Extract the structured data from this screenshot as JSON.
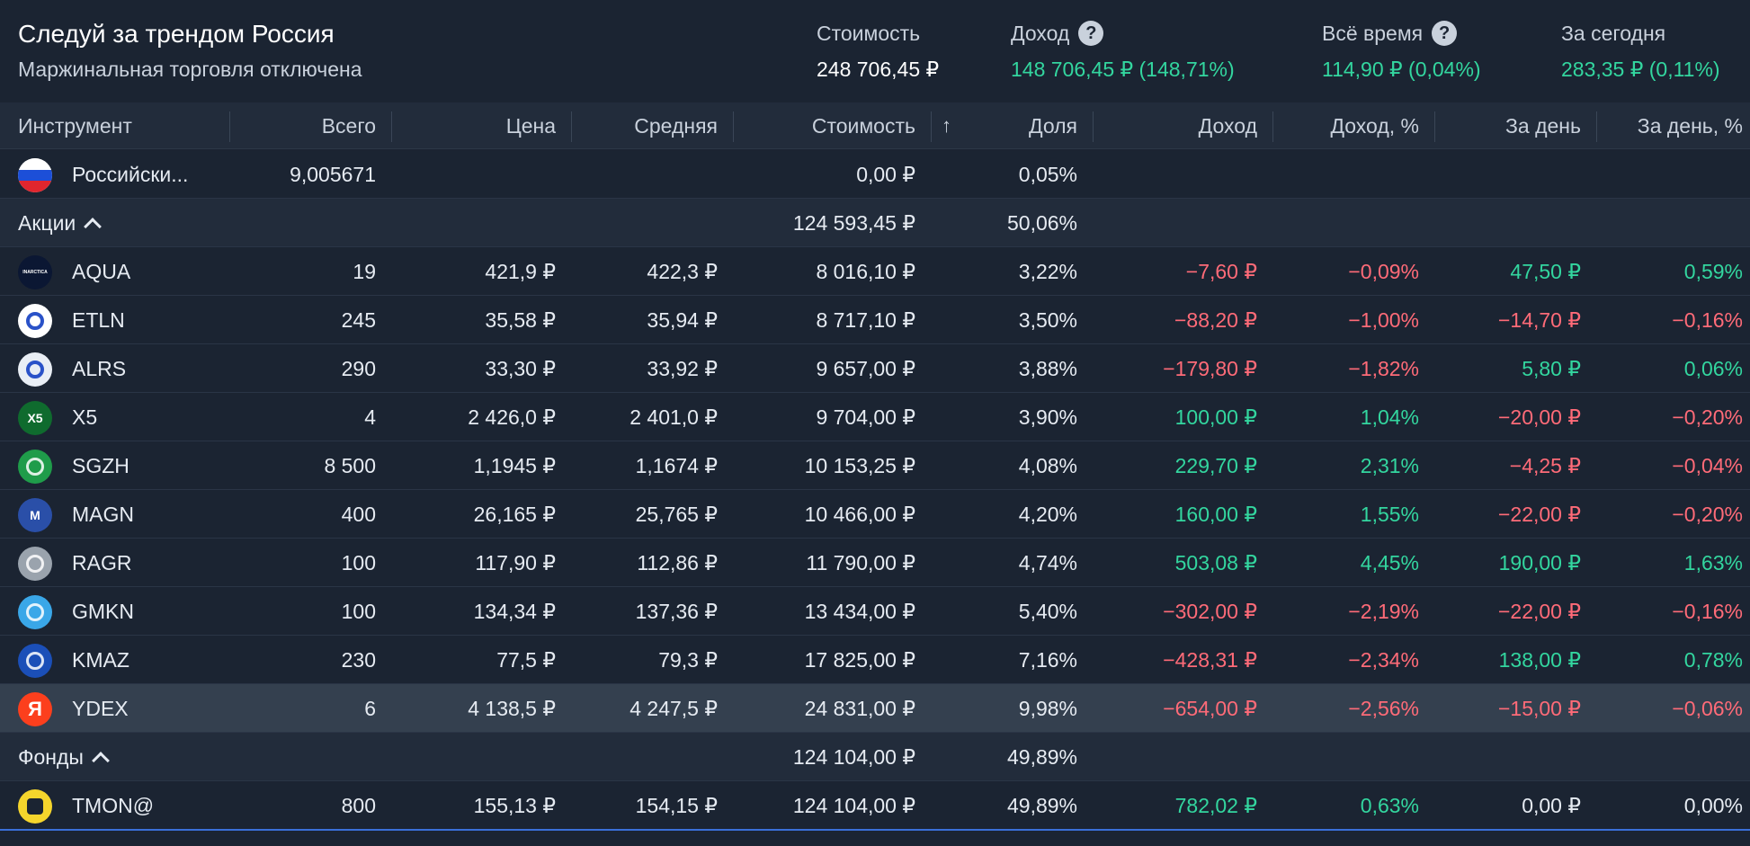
{
  "header": {
    "title": "Следуй за трендом Россия",
    "subtitle": "Маржинальная торговля отключена",
    "stats": [
      {
        "label": "Стоимость",
        "value": "248 706,45 ₽",
        "help": false,
        "tone": "white"
      },
      {
        "label": "Доход",
        "value": "148 706,45 ₽ (148,71%)",
        "help": true,
        "tone": "green"
      },
      {
        "label": "Всё время",
        "value": "114,90 ₽ (0,04%)",
        "help": true,
        "tone": "green"
      },
      {
        "label": "За сегодня",
        "value": "283,35 ₽ (0,11%)",
        "help": false,
        "tone": "green"
      }
    ]
  },
  "table": {
    "headers": {
      "instrument": "Инструмент",
      "total": "Всего",
      "price": "Цена",
      "avg": "Средняя",
      "value": "Стоимость",
      "share": "Доля",
      "income": "Доход",
      "income_pct": "Доход, %",
      "day": "За день",
      "day_pct": "За день, %"
    },
    "currency_row": {
      "name": "Российски...",
      "total": "9,005671",
      "value": "0,00 ₽",
      "share": "0,05%"
    },
    "groups": {
      "stocks": {
        "label": "Акции",
        "value": "124 593,45 ₽",
        "share": "50,06%"
      },
      "funds": {
        "label": "Фонды",
        "value": "124 104,00 ₽",
        "share": "49,89%"
      }
    },
    "stocks": [
      {
        "ticker": "AQUA",
        "total": "19",
        "price": "421,9 ₽",
        "avg": "422,3 ₽",
        "value": "8 016,10 ₽",
        "share": "3,22%",
        "income": "−7,60 ₽",
        "income_pct": "−0,09%",
        "day": "47,50 ₽",
        "day_pct": "0,59%",
        "logo_color": "#0b1733",
        "logo_icon": "inarctica-icon",
        "logo_text": "INARCTICA"
      },
      {
        "ticker": "ETLN",
        "total": "245",
        "price": "35,58 ₽",
        "avg": "35,94 ₽",
        "value": "8 717,10 ₽",
        "share": "3,50%",
        "income": "−88,20 ₽",
        "income_pct": "−1,00%",
        "day": "−14,70 ₽",
        "day_pct": "−0,16%",
        "logo_color": "#ffffff",
        "logo_icon": "etalon-icon",
        "logo_text": ""
      },
      {
        "ticker": "ALRS",
        "total": "290",
        "price": "33,30 ₽",
        "avg": "33,92 ₽",
        "value": "9 657,00 ₽",
        "share": "3,88%",
        "income": "−179,80 ₽",
        "income_pct": "−1,82%",
        "day": "5,80 ₽",
        "day_pct": "0,06%",
        "logo_color": "#e9eef5",
        "logo_icon": "alrosa-icon",
        "logo_text": ""
      },
      {
        "ticker": "X5",
        "total": "4",
        "price": "2 426,0 ₽",
        "avg": "2 401,0 ₽",
        "value": "9 704,00 ₽",
        "share": "3,90%",
        "income": "100,00 ₽",
        "income_pct": "1,04%",
        "day": "−20,00 ₽",
        "day_pct": "−0,20%",
        "logo_color": "#0f6b2e",
        "logo_icon": "x5-icon",
        "logo_text": "X5"
      },
      {
        "ticker": "SGZH",
        "total": "8 500",
        "price": "1,1945 ₽",
        "avg": "1,1674 ₽",
        "value": "10 153,25 ₽",
        "share": "4,08%",
        "income": "229,70 ₽",
        "income_pct": "2,31%",
        "day": "−4,25 ₽",
        "day_pct": "−0,04%",
        "logo_color": "#1f9c4a",
        "logo_icon": "segezha-icon",
        "logo_text": ""
      },
      {
        "ticker": "MAGN",
        "total": "400",
        "price": "26,165 ₽",
        "avg": "25,765 ₽",
        "value": "10 466,00 ₽",
        "share": "4,20%",
        "income": "160,00 ₽",
        "income_pct": "1,55%",
        "day": "−22,00 ₽",
        "day_pct": "−0,20%",
        "logo_color": "#2a4fa8",
        "logo_icon": "mmk-icon",
        "logo_text": "M"
      },
      {
        "ticker": "RAGR",
        "total": "100",
        "price": "117,90 ₽",
        "avg": "112,86 ₽",
        "value": "11 790,00 ₽",
        "share": "4,74%",
        "income": "503,08 ₽",
        "income_pct": "4,45%",
        "day": "190,00 ₽",
        "day_pct": "1,63%",
        "logo_color": "#9aa3ad",
        "logo_icon": "rusagro-icon",
        "logo_text": ""
      },
      {
        "ticker": "GMKN",
        "total": "100",
        "price": "134,34 ₽",
        "avg": "137,36 ₽",
        "value": "13 434,00 ₽",
        "share": "5,40%",
        "income": "−302,00 ₽",
        "income_pct": "−2,19%",
        "day": "−22,00 ₽",
        "day_pct": "−0,16%",
        "logo_color": "#3aa7e8",
        "logo_icon": "nornickel-icon",
        "logo_text": ""
      },
      {
        "ticker": "KMAZ",
        "total": "230",
        "price": "77,5 ₽",
        "avg": "79,3 ₽",
        "value": "17 825,00 ₽",
        "share": "7,16%",
        "income": "−428,31 ₽",
        "income_pct": "−2,34%",
        "day": "138,00 ₽",
        "day_pct": "0,78%",
        "logo_color": "#1b4fb8",
        "logo_icon": "kamaz-icon",
        "logo_text": ""
      },
      {
        "ticker": "YDEX",
        "total": "6",
        "price": "4 138,5 ₽",
        "avg": "4 247,5 ₽",
        "value": "24 831,00 ₽",
        "share": "9,98%",
        "income": "−654,00 ₽",
        "income_pct": "−2,56%",
        "day": "−15,00 ₽",
        "day_pct": "−0,06%",
        "logo_color": "#fc3f1d",
        "logo_icon": "yandex-icon",
        "logo_text": "Я"
      }
    ],
    "funds": [
      {
        "ticker": "TMON@",
        "total": "800",
        "price": "155,13 ₽",
        "avg": "154,15 ₽",
        "value": "124 104,00 ₽",
        "share": "49,89%",
        "income": "782,02 ₽",
        "income_pct": "0,63%",
        "day": "0,00 ₽",
        "day_pct": "0,00%",
        "logo_color": "#f5d52c",
        "logo_icon": "tmon-icon",
        "logo_text": ""
      }
    ]
  }
}
